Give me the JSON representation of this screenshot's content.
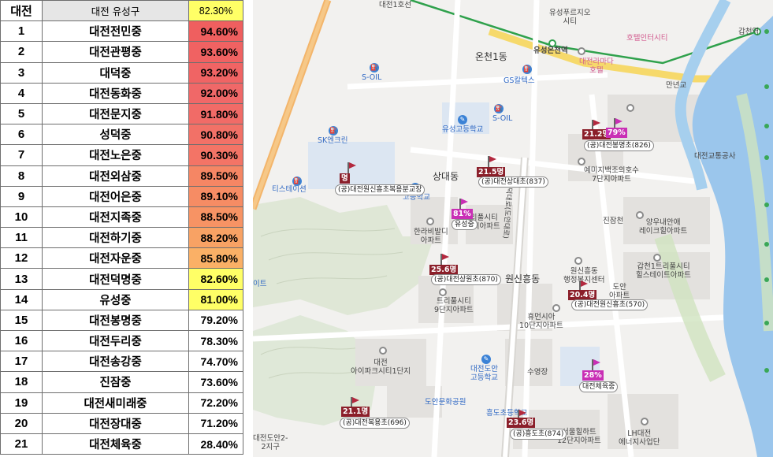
{
  "table": {
    "header": {
      "rank": "대전",
      "name": "대전 유성구",
      "rate": "82.30%"
    },
    "rows": [
      {
        "rank": "1",
        "name": "대전전민중",
        "rate": "94.60%",
        "color": "#ef5f5f"
      },
      {
        "rank": "2",
        "name": "대전관평중",
        "rate": "93.60%",
        "color": "#f06262"
      },
      {
        "rank": "3",
        "name": "대덕중",
        "rate": "93.20%",
        "color": "#f06464"
      },
      {
        "rank": "4",
        "name": "대전동화중",
        "rate": "92.00%",
        "color": "#f06868"
      },
      {
        "rank": "5",
        "name": "대전문지중",
        "rate": "91.80%",
        "color": "#f16b67"
      },
      {
        "rank": "6",
        "name": "성덕중",
        "rate": "90.80%",
        "color": "#f27167"
      },
      {
        "rank": "7",
        "name": "대전노은중",
        "rate": "90.30%",
        "color": "#f37466"
      },
      {
        "rank": "8",
        "name": "대전외삼중",
        "rate": "89.50%",
        "color": "#f58664"
      },
      {
        "rank": "9",
        "name": "대전어은중",
        "rate": "89.10%",
        "color": "#f68c64"
      },
      {
        "rank": "10",
        "name": "대전지족중",
        "rate": "88.50%",
        "color": "#f79364"
      },
      {
        "rank": "11",
        "name": "대전하기중",
        "rate": "88.20%",
        "color": "#f8a264"
      },
      {
        "rank": "12",
        "name": "대전자운중",
        "rate": "85.80%",
        "color": "#fab066"
      },
      {
        "rank": "13",
        "name": "대전덕명중",
        "rate": "82.60%",
        "color": "#ffff66"
      },
      {
        "rank": "14",
        "name": "유성중",
        "rate": "81.00%",
        "color": "#ffff66"
      },
      {
        "rank": "15",
        "name": "대전봉명중",
        "rate": "79.20%",
        "color": "#ffffff"
      },
      {
        "rank": "16",
        "name": "대전두리중",
        "rate": "78.30%",
        "color": "#ffffff"
      },
      {
        "rank": "17",
        "name": "대전송강중",
        "rate": "74.70%",
        "color": "#ffffff"
      },
      {
        "rank": "18",
        "name": "진잠중",
        "rate": "73.60%",
        "color": "#ffffff"
      },
      {
        "rank": "19",
        "name": "대전새미래중",
        "rate": "72.20%",
        "color": "#ffffff"
      },
      {
        "rank": "20",
        "name": "대전장대중",
        "rate": "71.20%",
        "color": "#ffffff"
      },
      {
        "rank": "21",
        "name": "대전체육중",
        "rate": "28.40%",
        "color": "#ffffff"
      }
    ]
  },
  "map": {
    "labels": {
      "line1": "대전1호선",
      "yuseong_pure": "유성푸르지오\n시티",
      "hotel_intercity": "호텔인터시티",
      "gapcheon_stn": "갑천역",
      "oncheon1": "온천1동",
      "yuseong_oncheon_stn": "유성온천역",
      "daejeon_ramada": "대전라마다\n호텔",
      "mannyeongyo": "만년교",
      "soil1": "S-OIL",
      "gs_caltex": "GS칼텍스",
      "soil2": "S-OIL",
      "yuseong_high": "유성고등학교",
      "sk_energy": "SK엔크린",
      "tstation": "티스테이션",
      "sangdae_dong": "상대동",
      "godeung": "고등학교",
      "hanra": "한라비발디\n아파트",
      "triplecity": "트리풀시티\n3단지아파트",
      "yemizi": "예미지백조의호수\n7단지아파트",
      "jinjamcheon": "진잠천",
      "yangwoo": "양우내안애\n레이크힐아파트",
      "gapcheon1": "갑천1트리풀시티\n힐스테이트아파트",
      "daejeon_transport": "대전교통공사",
      "wonsin_heung": "원신흥동",
      "wonsin_center": "원신흥동\n행정복지센터",
      "triplecity9": "트리풀시티\n9단지아파트",
      "heuneon": "휴먼시아\n10단지아파트",
      "apt1": "대전\n아이파크시티1단지",
      "doan_high": "대전도안\n고등학교",
      "suyeongjang": "수영장",
      "doan_park": "도안문화공원",
      "hungdo_school": "흥도초등학교",
      "seoul_apt": "서울힐하트\n12단지아파트",
      "lh": "LH대전\n에너지사업단",
      "doan2": "대전도안2-\n2지구",
      "left_edge": "이트",
      "road": "대덕대로(도안대로)",
      "donjin": "도안\n아파트"
    },
    "markers": [
      {
        "school": "(공)대전원신흥초복용분교장",
        "value": "명",
        "color": "red"
      },
      {
        "school": "(공)대전상대초(837)",
        "value": "21.5명",
        "color": "red"
      },
      {
        "school": "유성중",
        "value": "81%",
        "color": "mag"
      },
      {
        "school": "(공)대전봉명초(826)",
        "value": "21.2명",
        "color": "red"
      },
      {
        "school": "",
        "value": "79%",
        "color": "mag"
      },
      {
        "school": "(공)대전상원초(870)",
        "value": "25.6명",
        "color": "red"
      },
      {
        "school": "(공)대전원신흥초(570)",
        "value": "20.4명",
        "color": "red"
      },
      {
        "school": "대전체육중",
        "value": "28%",
        "color": "mag"
      },
      {
        "school": "(공)대전복용초(696)",
        "value": "21.1명",
        "color": "red"
      },
      {
        "school": "(공)흥도초(874)",
        "value": "23.6명",
        "color": "red"
      }
    ],
    "brand_color": "#2fa14c"
  }
}
